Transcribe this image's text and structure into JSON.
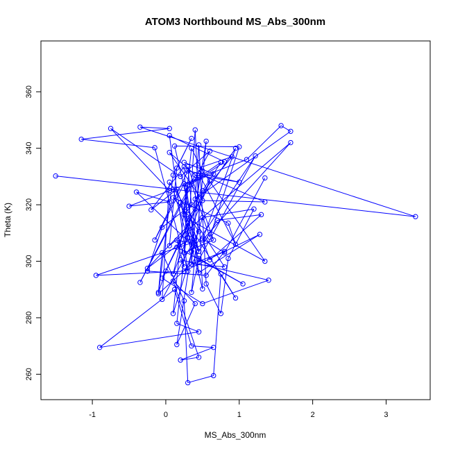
{
  "chart_data": {
    "type": "scatter",
    "title": "ATOM3 Northbound MS_Abs_300nm",
    "xlabel": "MS_Abs_300nm",
    "ylabel": "Theta (K)",
    "xlim": [
      -1.7,
      3.6
    ],
    "ylim": [
      251,
      378
    ],
    "xticks": [
      -1,
      0,
      1,
      2,
      3
    ],
    "yticks": [
      260,
      280,
      300,
      320,
      340,
      360
    ],
    "grid": false,
    "legend": "none",
    "connected": true,
    "color": "#0000ff",
    "points": [
      [
        -1.5,
        330.2
      ],
      [
        3.4,
        315.8
      ],
      [
        -0.35,
        347.5
      ],
      [
        0.05,
        347.0
      ],
      [
        -1.15,
        343.2
      ],
      [
        -0.15,
        340.2
      ],
      [
        0.3,
        296.5
      ],
      [
        0.05,
        344.5
      ],
      [
        0.8,
        335.2
      ],
      [
        0.35,
        327.3
      ],
      [
        0.6,
        308.5
      ],
      [
        1.0,
        340.5
      ],
      [
        0.12,
        340.8
      ],
      [
        0.45,
        303.5
      ],
      [
        0.15,
        325.5
      ],
      [
        -0.2,
        318.2
      ],
      [
        0.25,
        333.5
      ],
      [
        0.3,
        308.5
      ],
      [
        0.4,
        346.5
      ],
      [
        0.5,
        290.2
      ],
      [
        0.2,
        320.8
      ],
      [
        0.45,
        300.5
      ],
      [
        1.22,
        337.3
      ],
      [
        0.35,
        303.5
      ],
      [
        0.1,
        325.5
      ],
      [
        -0.5,
        319.5
      ],
      [
        0.05,
        321.0
      ],
      [
        -0.4,
        324.5
      ],
      [
        0.45,
        303.5
      ],
      [
        0.3,
        312.5
      ],
      [
        -0.25,
        297.5
      ],
      [
        0.2,
        306.5
      ],
      [
        0.1,
        295.5
      ],
      [
        0.6,
        328.5
      ],
      [
        0.0,
        296.5
      ],
      [
        -0.1,
        289.0
      ],
      [
        -0.05,
        303.0
      ],
      [
        0.25,
        286.0
      ],
      [
        0.3,
        257.0
      ],
      [
        0.65,
        259.5
      ],
      [
        0.75,
        295.5
      ],
      [
        0.95,
        287.0
      ],
      [
        0.3,
        313.5
      ],
      [
        0.15,
        278.0
      ],
      [
        0.45,
        275.0
      ],
      [
        -0.9,
        269.5
      ],
      [
        0.12,
        290.0
      ],
      [
        0.35,
        270.0
      ],
      [
        0.65,
        269.5
      ],
      [
        0.2,
        265.0
      ],
      [
        0.45,
        266.0
      ],
      [
        0.1,
        293.0
      ],
      [
        0.4,
        285.0
      ],
      [
        0.15,
        270.5
      ],
      [
        0.35,
        303.5
      ],
      [
        0.45,
        341.2
      ],
      [
        0.55,
        292.0
      ],
      [
        0.75,
        281.5
      ],
      [
        0.85,
        301.0
      ],
      [
        1.2,
        318.5
      ],
      [
        0.5,
        315.5
      ],
      [
        0.1,
        281.5
      ],
      [
        0.28,
        326.0
      ],
      [
        0.45,
        296.0
      ],
      [
        1.28,
        309.5
      ],
      [
        0.25,
        296.5
      ],
      [
        -0.95,
        295.0
      ],
      [
        0.35,
        306.5
      ],
      [
        0.15,
        307.5
      ],
      [
        0.25,
        298.0
      ],
      [
        0.2,
        300.5
      ],
      [
        1.4,
        293.3
      ],
      [
        0.5,
        285.0
      ],
      [
        -0.05,
        294.0
      ],
      [
        0.4,
        318.5
      ],
      [
        0.55,
        342.5
      ],
      [
        0.35,
        289.0
      ],
      [
        0.45,
        301.0
      ],
      [
        1.05,
        292.0
      ],
      [
        0.15,
        305.0
      ],
      [
        0.35,
        308.0
      ],
      [
        0.35,
        299.0
      ],
      [
        0.8,
        303.5
      ],
      [
        0.55,
        295.0
      ],
      [
        -0.25,
        296.5
      ],
      [
        -0.05,
        312.0
      ],
      [
        0.35,
        320.0
      ],
      [
        0.3,
        333.5
      ],
      [
        0.65,
        307.5
      ],
      [
        0.25,
        303.0
      ],
      [
        0.3,
        327.0
      ],
      [
        0.75,
        335.0
      ],
      [
        0.5,
        325.0
      ],
      [
        0.4,
        322.0
      ],
      [
        1.7,
        346.0
      ],
      [
        1.57,
        348.0
      ],
      [
        1.1,
        336.0
      ],
      [
        0.25,
        327.5
      ],
      [
        -0.15,
        307.5
      ],
      [
        0.3,
        332.0
      ],
      [
        1.0,
        328.0
      ],
      [
        0.4,
        330.5
      ],
      [
        -0.35,
        292.5
      ],
      [
        0.6,
        339.0
      ],
      [
        0.2,
        330.0
      ],
      [
        -0.75,
        347.0
      ],
      [
        0.05,
        325.0
      ],
      [
        0.65,
        331.0
      ],
      [
        0.25,
        335.0
      ],
      [
        0.45,
        333.0
      ],
      [
        0.9,
        337.0
      ],
      [
        0.25,
        316.5
      ],
      [
        0.35,
        340.0
      ],
      [
        0.5,
        332.0
      ],
      [
        1.35,
        300.0
      ],
      [
        0.3,
        315.0
      ],
      [
        0.95,
        340.0
      ],
      [
        0.5,
        307.5
      ],
      [
        1.7,
        342.0
      ],
      [
        0.05,
        305.5
      ],
      [
        0.15,
        333.0
      ],
      [
        0.35,
        343.5
      ],
      [
        0.1,
        330.5
      ],
      [
        -0.1,
        288.5
      ],
      [
        0.35,
        299.0
      ],
      [
        0.8,
        298.0
      ],
      [
        0.05,
        328.0
      ],
      [
        -0.05,
        286.5
      ],
      [
        0.45,
        310.5
      ],
      [
        0.3,
        316.5
      ],
      [
        0.1,
        322.5
      ],
      [
        0.85,
        313.5
      ],
      [
        0.95,
        306.0
      ],
      [
        0.45,
        331.0
      ],
      [
        1.35,
        321.0
      ],
      [
        0.5,
        321.5
      ],
      [
        0.05,
        338.5
      ],
      [
        0.45,
        329.5
      ],
      [
        0.35,
        299.0
      ],
      [
        0.7,
        314.5
      ],
      [
        1.3,
        316.5
      ],
      [
        0.6,
        300.5
      ],
      [
        0.5,
        308.0
      ],
      [
        0.8,
        303.0
      ],
      [
        1.35,
        329.5
      ]
    ]
  }
}
